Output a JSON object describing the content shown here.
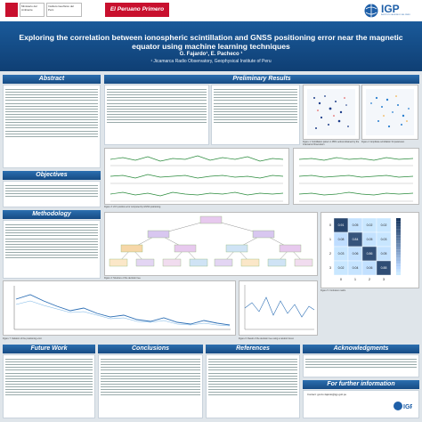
{
  "header": {
    "logos_left": [
      "PERÚ",
      "Ministerio del Ambiente",
      "Instituto Geofísico del Perú"
    ],
    "newspaper": "El Peruano Primero",
    "logo_right_text": "IGP",
    "logo_right_sub": "INSTITUTO GEOFÍSICO DEL PERÚ"
  },
  "title": "Exploring the correlation between ionospheric scintillation and GNSS positioning error near the magnetic equator using machine learning techniques",
  "authors": "G. Fajardo¹, E. Pacheco ¹",
  "affiliation": "¹ Jicamarca Radio Observatory, Geophysical Institute of Peru",
  "sections": {
    "abstract": "Abstract",
    "objectives": "Objectives",
    "methodology": "Methodology",
    "results": "Preliminary Results",
    "future": "Future Work",
    "conclusions": "Conclusions",
    "references": "References",
    "acknowledgments": "Acknowledgments",
    "further": "For further information"
  },
  "figure_captions": {
    "fig1": "Figure 1: Scintillation pattern 1 PRN vertical obtained by the Jicamarca Observatory.",
    "fig2": "Figure 2: Amplitude scintillation S4 parameter.",
    "fig3": "Figure 3: 24 h position error computed by GNSS positioning.",
    "fig4": "Figure 4: Structure of the decision tree.",
    "fig5": "Figure 5: Confusion matrix.",
    "fig6": "Figure 6: Result of the decision tree using a random forest.",
    "fig7": "Figure 7: Variation of the positioning error."
  },
  "confusion_matrix": {
    "labels": [
      "0",
      "1",
      "2",
      "3"
    ],
    "values": [
      [
        0.91,
        0.05,
        0.02,
        0.02
      ],
      [
        0.08,
        0.84,
        0.05,
        0.03
      ],
      [
        0.03,
        0.06,
        0.86,
        0.05
      ],
      [
        0.02,
        0.04,
        0.06,
        0.88
      ]
    ]
  },
  "contact": "Contact: gonzo.fajardo@igp.gob.pe"
}
